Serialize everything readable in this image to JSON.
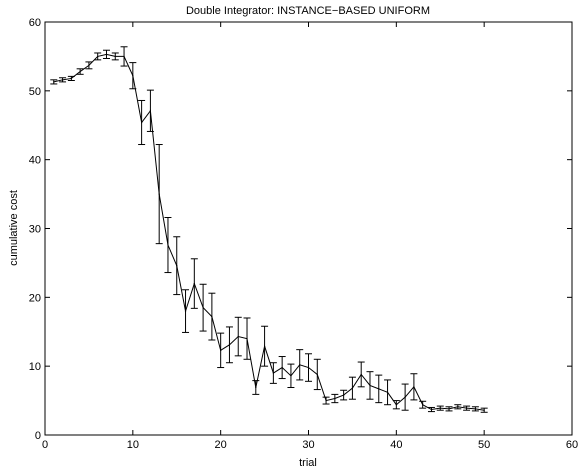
{
  "chart_data": {
    "type": "line",
    "title": "Double Integrator: INSTANCE−BASED UNIFORM",
    "xlabel": "trial",
    "ylabel": "cumulative cost",
    "xlim": [
      0,
      60
    ],
    "ylim": [
      0,
      60
    ],
    "xticks": [
      0,
      10,
      20,
      30,
      40,
      50,
      60
    ],
    "yticks": [
      0,
      10,
      20,
      30,
      40,
      50,
      60
    ],
    "grid": false,
    "line_color": "#000000",
    "error_bars": true,
    "series": [
      {
        "x": [
          1,
          2,
          3,
          4,
          5,
          6,
          7,
          8,
          9,
          10,
          11,
          12,
          13,
          14,
          15,
          16,
          17,
          18,
          19,
          20,
          21,
          22,
          23,
          24,
          25,
          26,
          27,
          28,
          29,
          30,
          31,
          32,
          33,
          34,
          35,
          36,
          37,
          38,
          39,
          40,
          41,
          42,
          43,
          44,
          45,
          46,
          47,
          48,
          49,
          50
        ],
        "y": [
          51.3,
          51.6,
          51.8,
          52.8,
          53.7,
          55.0,
          55.3,
          55.0,
          55.0,
          52.2,
          45.4,
          47.1,
          35.0,
          27.6,
          24.6,
          18.0,
          22.0,
          18.5,
          17.2,
          12.3,
          13.1,
          14.3,
          14.0,
          6.9,
          12.9,
          9.0,
          9.8,
          8.6,
          10.2,
          9.8,
          8.8,
          5.0,
          5.3,
          5.8,
          6.8,
          8.8,
          7.2,
          6.7,
          6.2,
          4.4,
          5.5,
          7.0,
          4.4,
          3.7,
          3.9,
          3.8,
          4.1,
          3.9,
          3.8,
          3.6
        ],
        "err": [
          0.3,
          0.3,
          0.3,
          0.4,
          0.5,
          0.5,
          0.6,
          0.5,
          1.4,
          1.9,
          3.2,
          3.0,
          7.2,
          4.0,
          4.2,
          3.1,
          3.6,
          3.4,
          3.4,
          2.5,
          2.6,
          2.8,
          3.0,
          1.0,
          2.9,
          1.5,
          1.6,
          1.7,
          2.2,
          2.0,
          2.2,
          0.5,
          0.6,
          0.7,
          1.6,
          1.8,
          2.0,
          2.0,
          1.8,
          0.6,
          1.9,
          1.9,
          0.5,
          0.3,
          0.3,
          0.3,
          0.3,
          0.3,
          0.3,
          0.3
        ]
      }
    ]
  }
}
